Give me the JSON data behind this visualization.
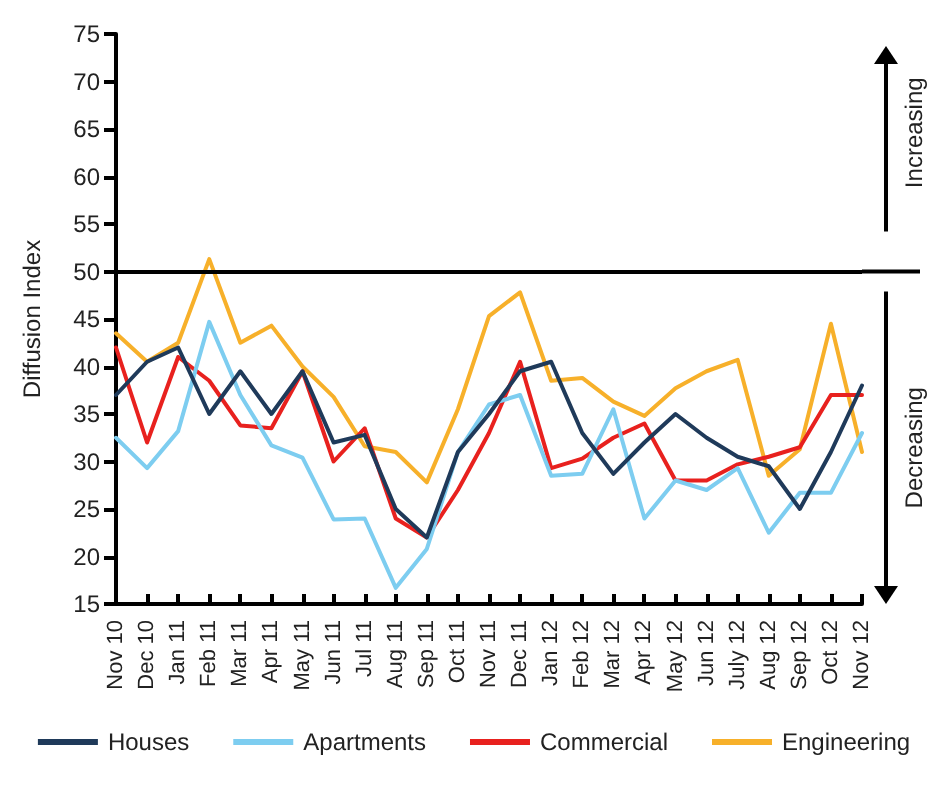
{
  "chart_data": {
    "type": "line",
    "ylabel": "Diffusion Index",
    "categories": [
      "Nov 10",
      "Dec 10",
      "Jan 11",
      "Feb 11",
      "Mar 11",
      "Apr 11",
      "May 11",
      "Jun 11",
      "Jul 11",
      "Aug 11",
      "Sep 11",
      "Oct 11",
      "Nov 11",
      "Dec 11",
      "Jan 12",
      "Feb 12",
      "Mar 12",
      "Apr 12",
      "May 12",
      "Jun 12",
      "July 12",
      "Aug 12",
      "Sep 12",
      "Oct 12",
      "Nov 12"
    ],
    "series": [
      {
        "name": "Houses",
        "color": "#1f3a5a",
        "values": [
          37,
          40.5,
          42,
          35,
          39.5,
          35,
          39.5,
          32,
          32.8,
          25,
          22,
          31,
          35,
          39.5,
          40.5,
          33,
          28.7,
          32,
          35,
          32.5,
          30.5,
          29.5,
          25,
          31,
          38
        ]
      },
      {
        "name": "Apartments",
        "color": "#7dcdf0",
        "values": [
          32.5,
          29.3,
          33.2,
          44.7,
          37,
          31.7,
          30.4,
          23.9,
          24,
          16.7,
          20.8,
          31,
          36,
          37,
          28.5,
          28.7,
          35.5,
          24,
          28,
          27,
          29.3,
          22.5,
          26.7,
          26.7,
          33
        ]
      },
      {
        "name": "Commercial",
        "color": "#e8211e",
        "values": [
          42,
          32,
          41,
          38.5,
          33.8,
          33.5,
          39.5,
          30,
          33.5,
          24,
          22,
          27,
          33,
          40.5,
          29.3,
          30.3,
          32.5,
          34,
          28,
          28,
          29.7,
          30.5,
          31.5,
          37,
          37
        ]
      },
      {
        "name": "Engineering",
        "color": "#f7b02a",
        "values": [
          43.5,
          40.5,
          42.5,
          51.3,
          42.5,
          44.3,
          40,
          36.8,
          31.6,
          31,
          27.8,
          35.5,
          45.3,
          47.8,
          38.5,
          38.8,
          36.3,
          34.8,
          37.7,
          39.5,
          40.7,
          28.5,
          31.3,
          44.5,
          31
        ]
      }
    ],
    "ylim": [
      15,
      75
    ],
    "yticks": [
      15,
      20,
      25,
      30,
      35,
      40,
      45,
      50,
      55,
      60,
      65,
      70,
      75
    ],
    "ref_lines": [
      {
        "axis": "y",
        "value": 50,
        "color": "#000000"
      }
    ],
    "annotations": [
      "Increasing",
      "Decreasing"
    ],
    "grid": false,
    "legend": "bottom",
    "marker": "none",
    "line_style": "solid"
  }
}
